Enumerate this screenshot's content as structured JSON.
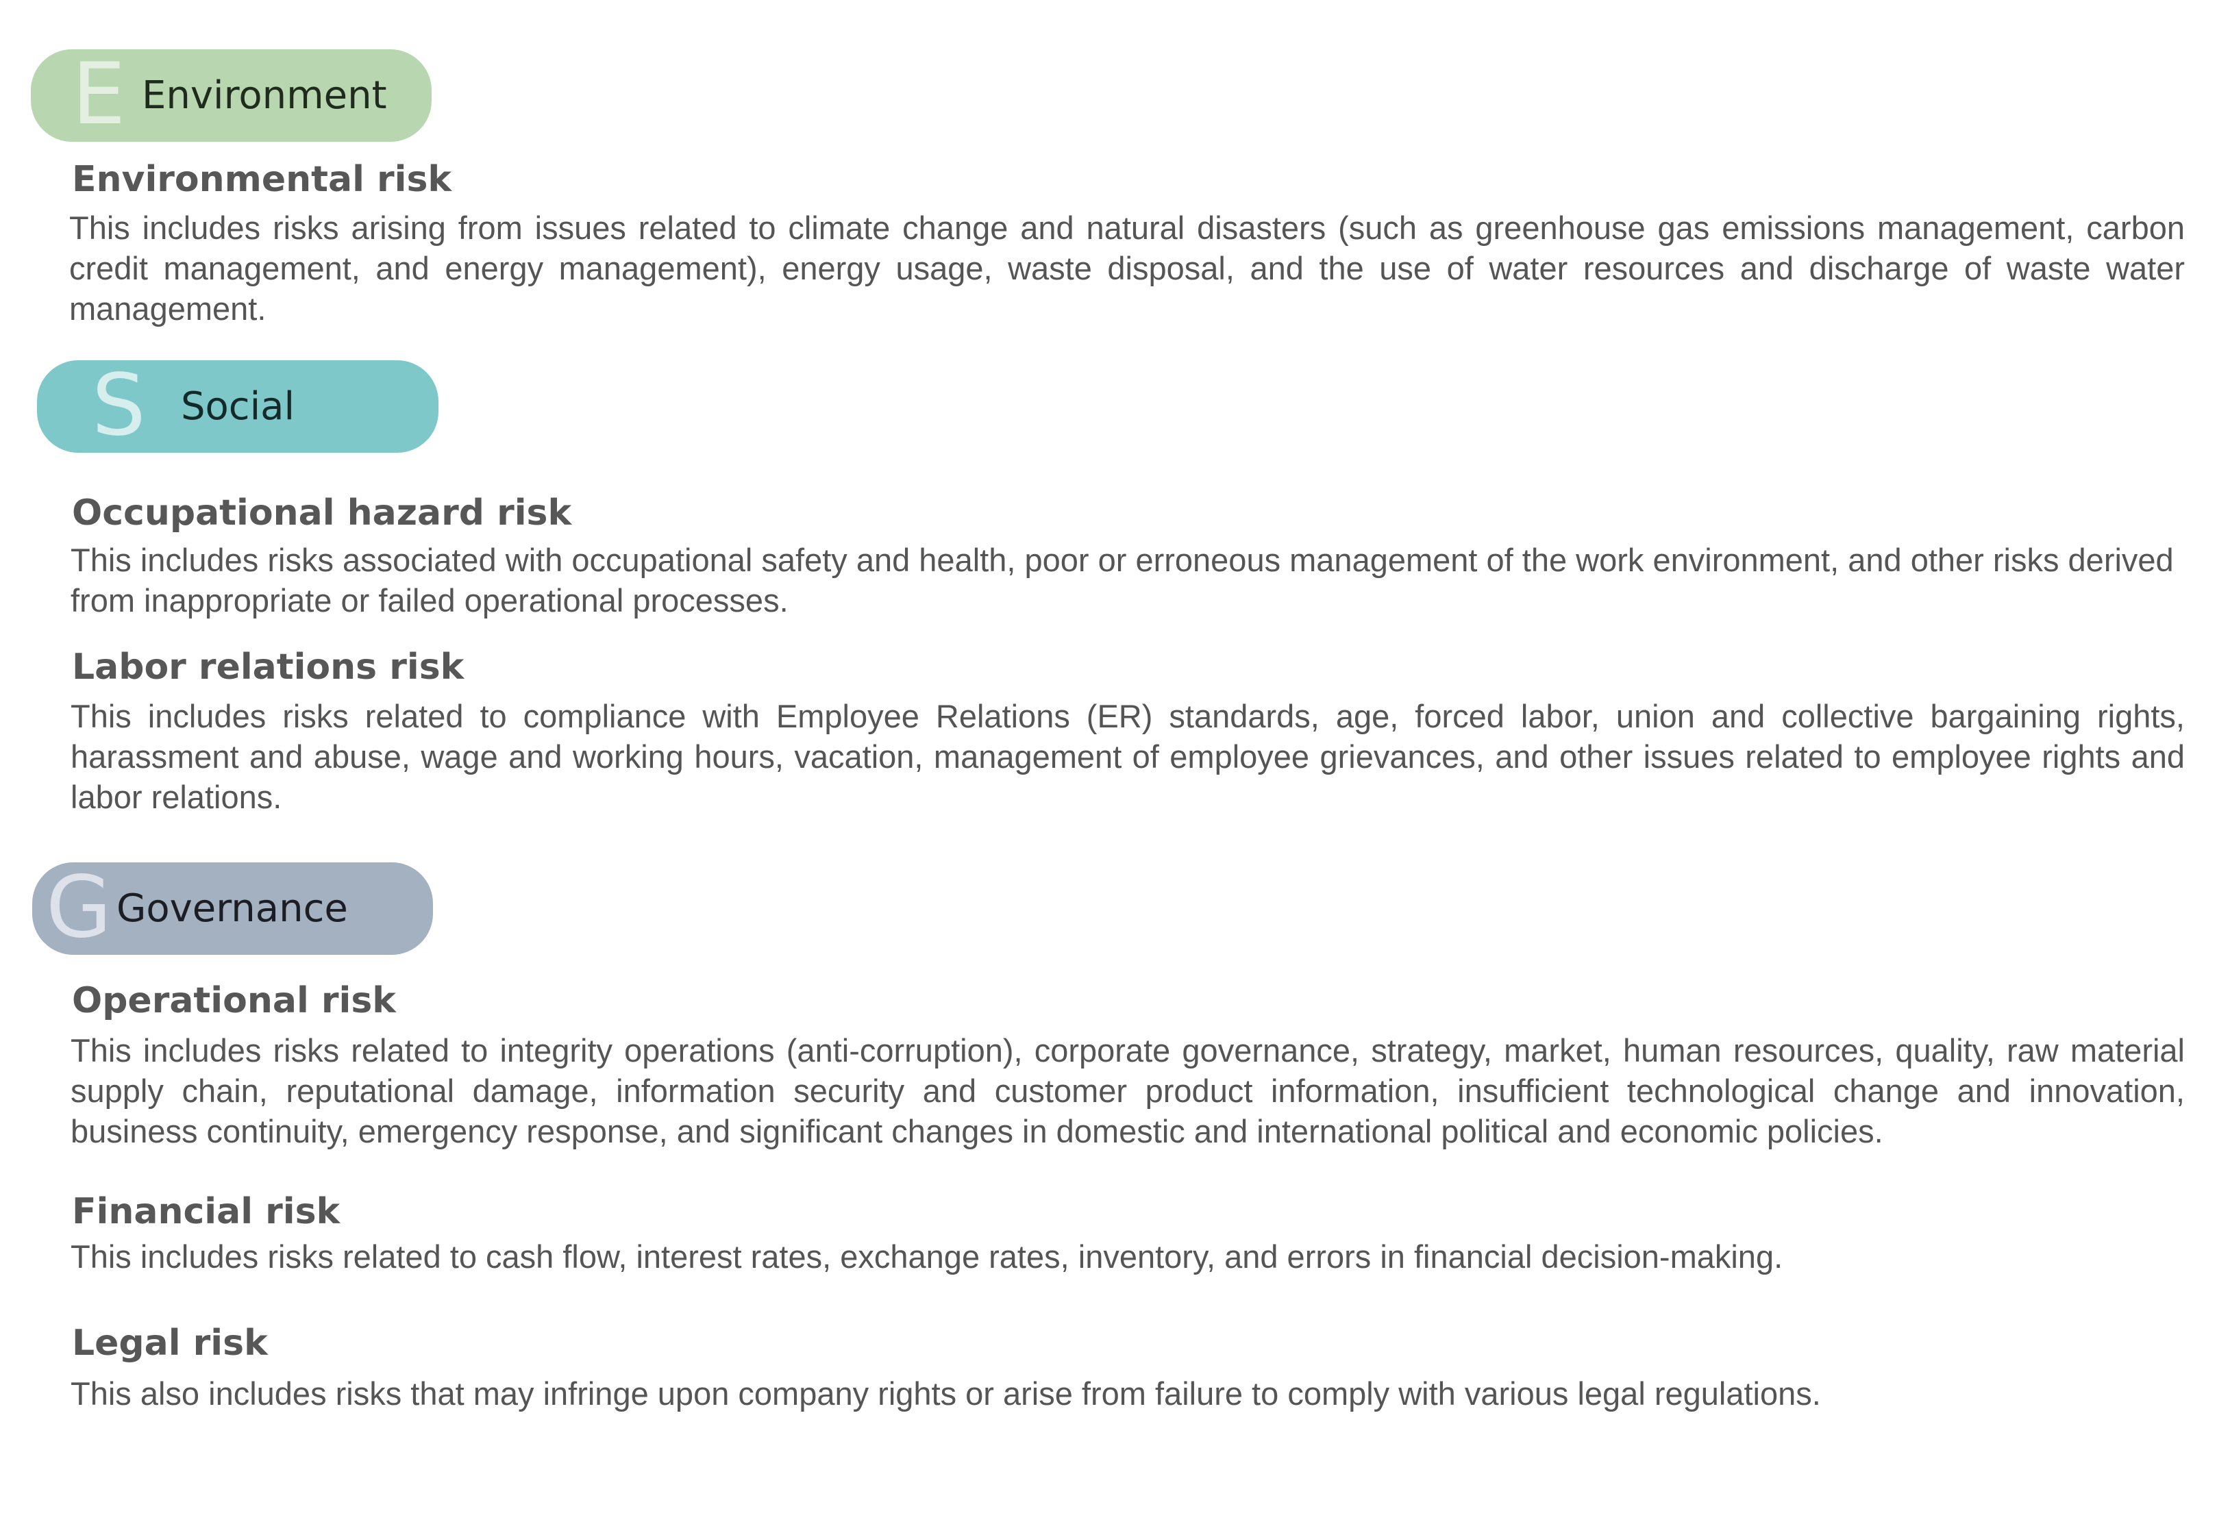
{
  "colors": {
    "environment": "#b8d7b0",
    "social": "#7ec8c9",
    "governance": "#a4b1c1",
    "text": "#555555"
  },
  "sections": {
    "environment": {
      "letter": "E",
      "label": "Environment",
      "items": [
        {
          "title": "Environmental risk",
          "text": "This includes risks arising from issues related to climate change and natural disasters (such as greenhouse gas emissions management, carbon credit management, and energy management), energy usage, waste disposal, and the use of water resources and discharge of waste water management."
        }
      ]
    },
    "social": {
      "letter": "S",
      "label": "Social",
      "items": [
        {
          "title": "Occupational hazard risk",
          "text": "This includes risks associated with occupational safety and health, poor or erroneous management of the work environment, and other risks derived from inappropriate or failed operational processes."
        },
        {
          "title": "Labor relations risk",
          "text": "This includes risks related to compliance with Employee Relations (ER) standards, age, forced labor, union and collective bargaining rights, harassment and abuse, wage and working hours, vacation, management of employee grievances, and other issues related to employee rights and labor relations."
        }
      ]
    },
    "governance": {
      "letter": "G",
      "label": "Governance",
      "items": [
        {
          "title": "Operational risk",
          "text": "This includes risks related to integrity operations (anti-corruption), corporate governance, strategy, market, human resources, quality, raw material supply chain, reputational damage, information security and customer product information, insufficient technological change and innovation, business continuity, emergency response, and significant changes in domestic and international political and economic policies."
        },
        {
          "title": "Financial risk",
          "text": "This includes risks related to cash flow, interest rates, exchange rates, inventory, and errors in financial decision-making."
        },
        {
          "title": "Legal risk",
          "text": "This also includes risks that may infringe upon company rights or arise from failure to comply with various legal regulations."
        }
      ]
    }
  }
}
